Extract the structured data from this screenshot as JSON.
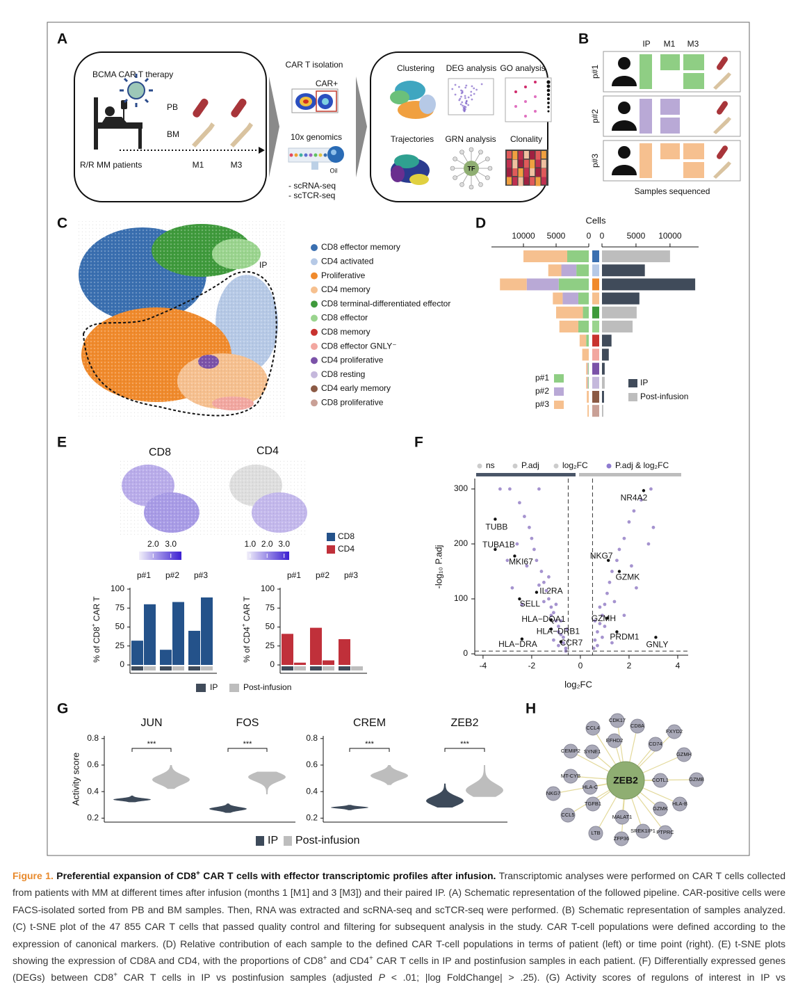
{
  "panels": {
    "A": {
      "label": "A",
      "therapy": "BCMA CAR T therapy",
      "pb": "PB",
      "bm": "BM",
      "patients": "R/R MM patients",
      "timepoints": [
        "M1",
        "M3"
      ],
      "isolation": "CAR T isolation",
      "car": "CAR+",
      "genomics": "10x genomics",
      "oil": "Oil",
      "methods": [
        "- scRNA-seq",
        "- scTCR-seq"
      ],
      "analyses": [
        "Clustering",
        "DEG analysis",
        "GO analysis",
        "Trajectories",
        "GRN analysis",
        "Clonality"
      ],
      "tf": "TF"
    },
    "B": {
      "label": "B",
      "columns": [
        "IP",
        "M1",
        "M3"
      ],
      "patients": [
        "p#1",
        "p#2",
        "p#3"
      ],
      "colors": [
        "#8fce84",
        "#b9a9d6",
        "#f6c08f"
      ],
      "footer": "Samples sequenced"
    },
    "C": {
      "label": "C",
      "region": "IP",
      "legend": [
        {
          "name": "CD8 effector memory",
          "color": "#3a6fb0"
        },
        {
          "name": "CD4 activated",
          "color": "#b6c9e6"
        },
        {
          "name": "Proliferative",
          "color": "#f08a2c"
        },
        {
          "name": "CD4 memory",
          "color": "#f6c08f"
        },
        {
          "name": "CD8 terminal-differentiated effector",
          "color": "#3f9a3c"
        },
        {
          "name": "CD8 effector",
          "color": "#9ad48e"
        },
        {
          "name": "CD8 memory",
          "color": "#c8332f"
        },
        {
          "name": "CD8 effector GNLY⁻",
          "color": "#f2a7a0"
        },
        {
          "name": "CD4 proliferative",
          "color": "#7b52a8"
        },
        {
          "name": "CD8 resting",
          "color": "#c5b8dc"
        },
        {
          "name": "CD4 early memory",
          "color": "#8b5a45"
        },
        {
          "name": "CD8 proliferative",
          "color": "#c9a096"
        }
      ]
    },
    "D": {
      "label": "D",
      "title": "Cells",
      "left_xlim": [
        0,
        14900
      ],
      "left_xticks": [
        10000,
        5000,
        0
      ],
      "right_xlim": [
        0,
        14200
      ],
      "right_xticks": [
        0,
        5000,
        10000
      ],
      "left_series": [
        {
          "name": "p#1",
          "color": "#8fce84",
          "values": [
            3300,
            1900,
            4600,
            1600,
            900,
            1600,
            400,
            0,
            100,
            100,
            0,
            0
          ]
        },
        {
          "name": "p#2",
          "color": "#b9a9d6",
          "values": [
            0,
            2300,
            4900,
            2400,
            0,
            0,
            0,
            0,
            100,
            100,
            0,
            0
          ]
        },
        {
          "name": "p#3",
          "color": "#f6c08f",
          "values": [
            6700,
            2000,
            4100,
            1500,
            4100,
            2900,
            1000,
            1000,
            200,
            200,
            300,
            200
          ]
        }
      ],
      "right_series": [
        {
          "name": "IP",
          "color": "#404b5a",
          "values": [
            0,
            6300,
            13700,
            5500,
            0,
            0,
            1400,
            1000,
            400,
            0,
            300,
            0
          ]
        },
        {
          "name": "Post-infusion",
          "color": "#bdbdbd",
          "values": [
            10000,
            0,
            0,
            0,
            5100,
            4500,
            0,
            0,
            0,
            400,
            0,
            200
          ]
        }
      ]
    },
    "E": {
      "label": "E",
      "maps": [
        {
          "title": "CD8",
          "lim": [
            1.2,
            3.6
          ],
          "ticks": [
            {
              "value": 2,
              "label": "2.0"
            },
            {
              "value": 3,
              "label": "3.0"
            }
          ]
        },
        {
          "title": "CD4",
          "lim": [
            0.8,
            3.3
          ],
          "ticks": [
            {
              "value": 1,
              "label": "1.0"
            },
            {
              "value": 2,
              "label": "2.0"
            },
            {
              "value": 3,
              "label": "3.0"
            }
          ]
        }
      ],
      "cell_legend": [
        {
          "name": "CD8",
          "color": "#24528a"
        },
        {
          "name": "CD4",
          "color": "#c0303a"
        }
      ],
      "bars": [
        {
          "ylabel": {
            "pre": "% of CD8",
            "sup": "+",
            "post": " CAR T"
          },
          "groups": [
            "p#1",
            "p#2",
            "p#3"
          ],
          "ylim": [
            0,
            100
          ],
          "yticks": [
            0,
            25,
            50,
            75,
            100
          ],
          "color": "#24528a",
          "ip": [
            32,
            20,
            45
          ],
          "post": [
            80,
            83,
            89
          ]
        },
        {
          "ylabel": {
            "pre": "% of CD4",
            "sup": "+",
            "post": " CAR T"
          },
          "groups": [
            "p#1",
            "p#2",
            "p#3"
          ],
          "ylim": [
            0,
            100
          ],
          "yticks": [
            0,
            25,
            50,
            75,
            100
          ],
          "color": "#c0303a",
          "ip": [
            41,
            49,
            34
          ],
          "post": [
            3,
            6,
            0
          ]
        }
      ],
      "sample_legend": [
        {
          "name": "IP",
          "color": "#404b5a"
        },
        {
          "name": "Post-infusion",
          "color": "#bdbdbd"
        }
      ]
    },
    "F": {
      "label": "F",
      "legend": [
        {
          "name": "ns",
          "color": "#cccccc"
        },
        {
          "name": "P.adj",
          "color": "#cccccc"
        },
        {
          "name": "log₂FC",
          "color": "#cccccc"
        },
        {
          "name": "P.adj & log₂FC",
          "color": "#8e7bd0"
        }
      ],
      "xlabel": "log₂FC",
      "ylabel": "-log₁₀ P.adj",
      "xlim": [
        -4.34,
        4.43
      ],
      "xticks": [
        -4,
        -2,
        0,
        2,
        4
      ],
      "ylim": [
        -2.5,
        319
      ],
      "yticks": [
        0,
        100,
        200,
        300
      ],
      "thresholds": {
        "log2fc": [
          -0.5,
          0.5
        ],
        "padj": 5
      },
      "points": {
        "x": [
          -0.6,
          -0.7,
          -0.8,
          -0.9,
          -1.0,
          -1.1,
          -1.2,
          -1.3,
          -1.4,
          -1.5,
          -1.6,
          -1.8,
          -1.9,
          -2.0,
          -2.1,
          -2.3,
          -2.5,
          -2.9,
          -3.3,
          -1.7,
          -0.7,
          -0.9,
          -1.0,
          -1.2,
          -0.8,
          -1.5,
          -1.7,
          -2.2,
          -2.6,
          -1.3,
          -0.6,
          -0.9,
          -1.1,
          -3.0,
          -2.8,
          -2.4,
          -0.55,
          0.55,
          0.6,
          0.7,
          0.8,
          0.9,
          1.0,
          1.1,
          1.2,
          1.3,
          1.5,
          1.6,
          1.8,
          2.0,
          2.2,
          2.5,
          2.9,
          0.6,
          0.7,
          0.9,
          1.0,
          1.3,
          1.8,
          2.3,
          2.8,
          3.0,
          1.4,
          2.1,
          0.8
        ],
        "y": [
          10,
          20,
          35,
          50,
          60,
          75,
          85,
          100,
          115,
          130,
          150,
          170,
          190,
          210,
          230,
          250,
          275,
          300,
          300,
          300,
          30,
          40,
          90,
          70,
          60,
          95,
          125,
          160,
          200,
          140,
          5,
          15,
          25,
          170,
          120,
          90,
          45,
          10,
          25,
          40,
          55,
          70,
          90,
          110,
          130,
          150,
          170,
          190,
          210,
          240,
          260,
          280,
          300,
          60,
          15,
          30,
          50,
          20,
          70,
          120,
          200,
          230,
          95,
          160,
          85
        ]
      },
      "genes": [
        {
          "name": "NR4A2",
          "x": 2.6,
          "y": 297
        },
        {
          "name": "TUBB",
          "x": -3.5,
          "y": 245
        },
        {
          "name": "TUBA1B",
          "x": -3.5,
          "y": 190
        },
        {
          "name": "MKI67",
          "x": -2.7,
          "y": 178
        },
        {
          "name": "IL2RA",
          "x": -1.8,
          "y": 112
        },
        {
          "name": "SELL",
          "x": -2.5,
          "y": 100
        },
        {
          "name": "HLA−DQA1",
          "x": -1.2,
          "y": 62
        },
        {
          "name": "HLA−DRB1",
          "x": -1.2,
          "y": 45
        },
        {
          "name": "CCR7",
          "x": -0.8,
          "y": 22
        },
        {
          "name": "HLA−DRA",
          "x": -2.4,
          "y": 27
        },
        {
          "name": "NKG7",
          "x": 1.15,
          "y": 170
        },
        {
          "name": "GZMK",
          "x": 1.6,
          "y": 150
        },
        {
          "name": "GZMH",
          "x": 1.1,
          "y": 65
        },
        {
          "name": "PRDM1",
          "x": 1.5,
          "y": 40
        },
        {
          "name": "GNLY",
          "x": 3.1,
          "y": 30
        }
      ]
    },
    "G": {
      "label": "G",
      "ylabel": "Activity score",
      "ylim": [
        0.17,
        0.82
      ],
      "yticks": [
        0.2,
        0.4,
        0.6,
        0.8
      ],
      "genes": [
        {
          "name": "JUN",
          "significance": "***",
          "ip": {
            "median": 0.34,
            "min": 0.32,
            "max": 0.37
          },
          "post": {
            "median": 0.49,
            "min": 0.42,
            "max": 0.6
          }
        },
        {
          "name": "FOS",
          "significance": "***",
          "ip": {
            "median": 0.27,
            "min": 0.24,
            "max": 0.31
          },
          "post": {
            "median": 0.51,
            "min": 0.38,
            "max": 0.55
          }
        },
        {
          "name": "CREM",
          "significance": "***",
          "ip": {
            "median": 0.28,
            "min": 0.26,
            "max": 0.3
          },
          "post": {
            "median": 0.52,
            "min": 0.45,
            "max": 0.6
          }
        },
        {
          "name": "ZEB2",
          "significance": "***",
          "ip": {
            "median": 0.33,
            "min": 0.28,
            "max": 0.46
          },
          "post": {
            "median": 0.41,
            "min": 0.36,
            "max": 0.6
          }
        }
      ],
      "legend": [
        {
          "name": "IP",
          "color": "#3d4a5a"
        },
        {
          "name": "Post-infusion",
          "color": "#bdbdbd"
        }
      ]
    },
    "H": {
      "label": "H",
      "center": "ZEB2",
      "targets": [
        "CDK17",
        "CD8A",
        "FXYD2",
        "CCL4",
        "EFHD2",
        "CD74",
        "GZMH",
        "CEMIP2",
        "SYNE1",
        "MT-CYB",
        "COTL1",
        "GZMB",
        "HLA-C",
        "HLA-B",
        "NKG7",
        "TGFB1",
        "GZMK",
        "CCL5",
        "MALAT1",
        "LTB",
        "SREK1IP1",
        "PTPRC",
        "ZFP36"
      ]
    }
  },
  "caption": [
    {
      "text": "Figure 1.",
      "style": "label"
    },
    {
      "text": " Preferential expansion of CD8",
      "style": "bold"
    },
    {
      "text": "+",
      "style": "bold-sup"
    },
    {
      "text": " CAR T cells with effector transcriptomic profiles after infusion.",
      "style": "bold"
    },
    {
      "text": " Transcriptomic analyses were performed on CAR T cells collected from patients with MM at different times after infusion (months 1 [M1] and 3 [M3]) and their paired IP. (A) Schematic representation of the followed pipeline. CAR-positive cells were FACS-isolated sorted from PB and BM samples. Then, RNA was extracted and scRNA-seq and scTCR-seq were performed. (B) Schematic representation of samples analyzed. (C) t-SNE plot of the 47 855 CAR T cells that passed quality control and filtering for subsequent analysis in the study. CAR T-cell populations were defined according to the expression of canonical markers. (D) Relative contribution of each sample to the defined CAR T-cell populations in terms of patient (left) or time point (right). (E) t-SNE plots showing the expression of CD8A and CD4, with the proportions of CD8",
      "style": "plain"
    },
    {
      "text": "+",
      "style": "sup"
    },
    {
      "text": " and CD4",
      "style": "plain"
    },
    {
      "text": "+",
      "style": "sup"
    },
    {
      "text": " CAR T cells in IP and postinfusion samples in each patient. (F) Differentially expressed genes (DEGs) between CD8",
      "style": "plain"
    },
    {
      "text": "+",
      "style": "sup"
    },
    {
      "text": " CAR T cells in IP vs postinfusion samples (adjusted ",
      "style": "plain"
    },
    {
      "text": "P",
      "style": "italic"
    },
    {
      "text": " < .01; |log FoldChange| > .25). (G) Activity scores of regulons of interest in IP vs",
      "style": "plain"
    }
  ]
}
